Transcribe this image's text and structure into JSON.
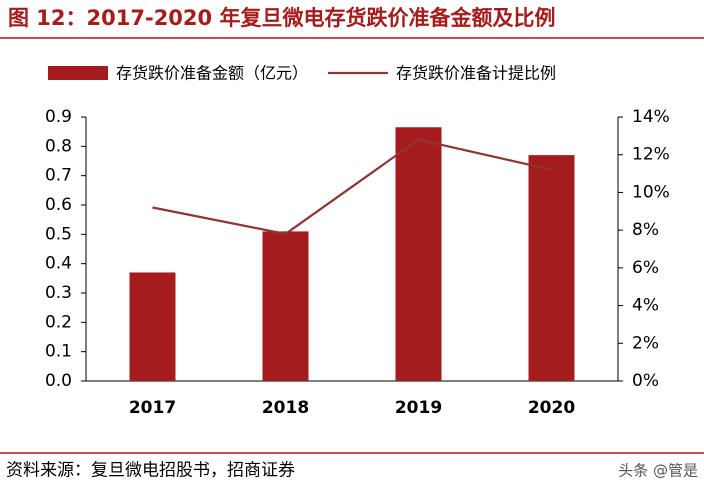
{
  "chart_data": {
    "type": "bar",
    "title": "图 12：2017-2020 年复旦微电存货跌价准备金额及比例",
    "source": "资料来源：复旦微电招股书，招商证券",
    "watermark": "头条 @管是",
    "categories": [
      "2017",
      "2018",
      "2019",
      "2020"
    ],
    "series": [
      {
        "name": "存货跌价准备金额（亿元）",
        "type": "bar",
        "color": "#a51c1c",
        "values": [
          0.37,
          0.51,
          0.865,
          0.77
        ]
      },
      {
        "name": "存货跌价准备计提比例",
        "type": "line",
        "axis": "y2",
        "color": "#8e3535",
        "values": [
          9.2,
          7.8,
          12.8,
          11.2
        ]
      }
    ],
    "ylim": [
      0,
      0.9
    ],
    "yticks": [
      {
        "value": 0,
        "label": "0.0"
      },
      0.1,
      0.2,
      0.3,
      0.4,
      0.5,
      0.6,
      0.7,
      0.8,
      0.9
    ],
    "y2lim": [
      0,
      14
    ],
    "y2ticks": [
      {
        "value": 0,
        "label": "0%"
      },
      {
        "value": 2,
        "label": "2%"
      },
      {
        "value": 4,
        "label": "4%"
      },
      {
        "value": 6,
        "label": "6%"
      },
      {
        "value": 8,
        "label": "8%"
      },
      {
        "value": 10,
        "label": "10%"
      },
      {
        "value": 12,
        "label": "12%"
      },
      {
        "value": 14,
        "label": "14%"
      }
    ],
    "grid": false
  }
}
